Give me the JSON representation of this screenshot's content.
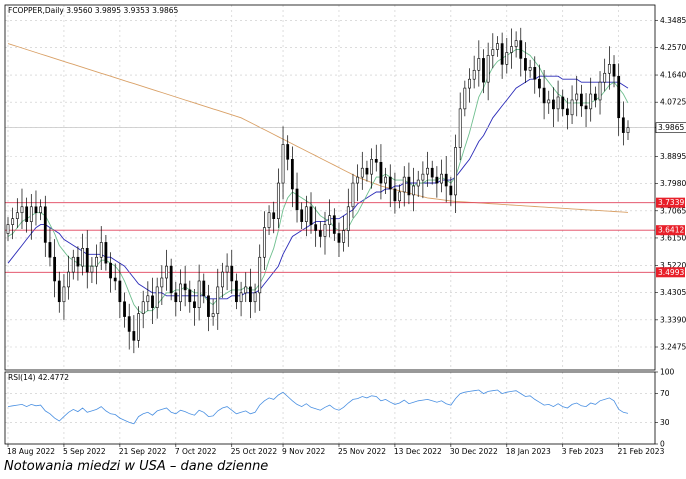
{
  "header": {
    "symbol_info": "FCOPPER,Daily  3.9560 3.9895 3.9353 3.9865",
    "rsi_label": "RSI(14) 42.4772"
  },
  "caption": "Notowania miedzi w USA – dane dzienne",
  "colors": {
    "candle_up": "#ffffff",
    "candle_down": "#000000",
    "ma_fast": "#6fbf8f",
    "ma_mid": "#2b2bb8",
    "ma_slow": "#d9a066",
    "level_line": "#e0405a",
    "level_badge": "#e8202a",
    "rsi_line": "#4a90e2",
    "grid": "#c8c8c8"
  },
  "chart_data": {
    "type": "candlestick",
    "ylim": [
      3.17,
      4.4
    ],
    "y_ticks": [
      "4.3485",
      "4.2570",
      "4.1640",
      "4.0725",
      "3.9865",
      "3.8895",
      "3.7980",
      "3.7065",
      "3.6150",
      "3.5220",
      "3.4305",
      "3.3390",
      "3.2475"
    ],
    "x_ticks": [
      {
        "label": "18 Aug 2022",
        "index": 0
      },
      {
        "label": "5 Sep 2022",
        "index": 12
      },
      {
        "label": "21 Sep 2022",
        "index": 24
      },
      {
        "label": "7 Oct 2022",
        "index": 36
      },
      {
        "label": "25 Oct 2022",
        "index": 48
      },
      {
        "label": "9 Nov 2022",
        "index": 59
      },
      {
        "label": "25 Nov 2022",
        "index": 71
      },
      {
        "label": "13 Dec 2022",
        "index": 83
      },
      {
        "label": "30 Dec 2022",
        "index": 95
      },
      {
        "label": "18 Jan 2023",
        "index": 107
      },
      {
        "label": "3 Feb 2023",
        "index": 119
      },
      {
        "label": "21 Feb 2023",
        "index": 131
      }
    ],
    "last_price": {
      "value": 3.9865,
      "label": "3.9865"
    },
    "levels": [
      {
        "value": 3.7339,
        "label": "3.7339"
      },
      {
        "value": 3.6412,
        "label": "3.6412"
      },
      {
        "value": 3.4993,
        "label": "3.4993"
      }
    ],
    "close": [
      3.66,
      3.68,
      3.7,
      3.72,
      3.67,
      3.72,
      3.7,
      3.72,
      3.6,
      3.55,
      3.47,
      3.4,
      3.45,
      3.5,
      3.55,
      3.52,
      3.58,
      3.5,
      3.52,
      3.55,
      3.6,
      3.53,
      3.48,
      3.47,
      3.4,
      3.35,
      3.3,
      3.27,
      3.36,
      3.4,
      3.42,
      3.38,
      3.45,
      3.48,
      3.52,
      3.43,
      3.4,
      3.46,
      3.44,
      3.4,
      3.38,
      3.47,
      3.42,
      3.35,
      3.36,
      3.45,
      3.5,
      3.52,
      3.47,
      3.4,
      3.43,
      3.45,
      3.4,
      3.43,
      3.55,
      3.65,
      3.7,
      3.68,
      3.8,
      3.93,
      3.88,
      3.78,
      3.71,
      3.67,
      3.72,
      3.66,
      3.64,
      3.62,
      3.66,
      3.69,
      3.63,
      3.6,
      3.64,
      3.72,
      3.8,
      3.82,
      3.85,
      3.83,
      3.88,
      3.87,
      3.8,
      3.82,
      3.78,
      3.74,
      3.77,
      3.82,
      3.76,
      3.79,
      3.81,
      3.83,
      3.85,
      3.82,
      3.8,
      3.83,
      3.79,
      3.76,
      3.92,
      4.05,
      4.12,
      4.15,
      4.18,
      4.22,
      4.14,
      4.23,
      4.25,
      4.27,
      4.2,
      4.24,
      4.26,
      4.28,
      4.22,
      4.18,
      4.19,
      4.15,
      4.12,
      4.07,
      4.08,
      4.05,
      4.09,
      4.05,
      4.03,
      4.08,
      4.1,
      4.06,
      4.05,
      4.1,
      4.08,
      4.14,
      4.17,
      4.2,
      4.16,
      4.02,
      3.97,
      3.9865
    ],
    "ma_fast": [
      3.62,
      3.63,
      3.65,
      3.67,
      3.68,
      3.69,
      3.7,
      3.7,
      3.69,
      3.66,
      3.63,
      3.59,
      3.57,
      3.55,
      3.54,
      3.53,
      3.52,
      3.52,
      3.52,
      3.52,
      3.54,
      3.54,
      3.53,
      3.52,
      3.5,
      3.47,
      3.43,
      3.39,
      3.37,
      3.36,
      3.37,
      3.37,
      3.39,
      3.41,
      3.43,
      3.43,
      3.44,
      3.44,
      3.45,
      3.44,
      3.43,
      3.43,
      3.42,
      3.4,
      3.39,
      3.41,
      3.42,
      3.43,
      3.44,
      3.44,
      3.44,
      3.45,
      3.44,
      3.44,
      3.46,
      3.49,
      3.54,
      3.58,
      3.64,
      3.71,
      3.75,
      3.77,
      3.76,
      3.75,
      3.74,
      3.73,
      3.71,
      3.69,
      3.68,
      3.67,
      3.65,
      3.64,
      3.64,
      3.65,
      3.68,
      3.7,
      3.73,
      3.76,
      3.79,
      3.82,
      3.82,
      3.83,
      3.82,
      3.81,
      3.81,
      3.81,
      3.8,
      3.79,
      3.8,
      3.8,
      3.81,
      3.81,
      3.81,
      3.82,
      3.81,
      3.8,
      3.82,
      3.87,
      3.92,
      3.97,
      4.03,
      4.09,
      4.12,
      4.16,
      4.19,
      4.21,
      4.22,
      4.23,
      4.24,
      4.25,
      4.25,
      4.24,
      4.23,
      4.21,
      4.19,
      4.16,
      4.14,
      4.12,
      4.1,
      4.09,
      4.07,
      4.07,
      4.07,
      4.07,
      4.07,
      4.07,
      4.08,
      4.09,
      4.11,
      4.13,
      4.14,
      4.12,
      4.1,
      4.07
    ],
    "ma_mid": [
      3.53,
      3.55,
      3.57,
      3.59,
      3.61,
      3.63,
      3.65,
      3.66,
      3.66,
      3.65,
      3.64,
      3.63,
      3.61,
      3.6,
      3.59,
      3.58,
      3.57,
      3.56,
      3.56,
      3.56,
      3.56,
      3.55,
      3.55,
      3.54,
      3.53,
      3.52,
      3.5,
      3.48,
      3.46,
      3.45,
      3.44,
      3.43,
      3.43,
      3.43,
      3.42,
      3.42,
      3.42,
      3.42,
      3.42,
      3.42,
      3.42,
      3.42,
      3.42,
      3.41,
      3.41,
      3.41,
      3.41,
      3.41,
      3.42,
      3.42,
      3.42,
      3.43,
      3.43,
      3.43,
      3.44,
      3.46,
      3.48,
      3.5,
      3.52,
      3.56,
      3.59,
      3.62,
      3.63,
      3.64,
      3.65,
      3.66,
      3.67,
      3.67,
      3.67,
      3.68,
      3.68,
      3.68,
      3.69,
      3.7,
      3.71,
      3.73,
      3.74,
      3.75,
      3.76,
      3.77,
      3.77,
      3.78,
      3.78,
      3.79,
      3.79,
      3.8,
      3.8,
      3.8,
      3.8,
      3.8,
      3.8,
      3.8,
      3.8,
      3.81,
      3.81,
      3.81,
      3.82,
      3.84,
      3.86,
      3.88,
      3.91,
      3.94,
      3.96,
      3.99,
      4.02,
      4.04,
      4.06,
      4.08,
      4.1,
      4.12,
      4.13,
      4.14,
      4.15,
      4.15,
      4.16,
      4.16,
      4.16,
      4.16,
      4.16,
      4.15,
      4.15,
      4.15,
      4.15,
      4.14,
      4.14,
      4.14,
      4.14,
      4.14,
      4.14,
      4.14,
      4.14,
      4.14,
      4.13,
      4.12
    ],
    "ma_slow": [
      4.27,
      4.265,
      4.26,
      4.255,
      4.25,
      4.245,
      4.24,
      4.235,
      4.23,
      4.225,
      4.22,
      4.215,
      4.21,
      4.205,
      4.2,
      4.195,
      4.19,
      4.185,
      4.18,
      4.175,
      4.17,
      4.165,
      4.16,
      4.155,
      4.15,
      4.145,
      4.14,
      4.135,
      4.13,
      4.125,
      4.12,
      4.115,
      4.11,
      4.105,
      4.1,
      4.095,
      4.09,
      4.085,
      4.08,
      4.075,
      4.07,
      4.065,
      4.06,
      4.055,
      4.05,
      4.045,
      4.04,
      4.035,
      4.03,
      4.025,
      4.02,
      4.012,
      4.004,
      3.996,
      3.988,
      3.98,
      3.972,
      3.964,
      3.956,
      3.948,
      3.94,
      3.932,
      3.924,
      3.916,
      3.908,
      3.9,
      3.892,
      3.884,
      3.876,
      3.868,
      3.86,
      3.852,
      3.844,
      3.836,
      3.828,
      3.82,
      3.814,
      3.808,
      3.802,
      3.796,
      3.79,
      3.786,
      3.782,
      3.778,
      3.774,
      3.77,
      3.766,
      3.762,
      3.758,
      3.754,
      3.75,
      3.748,
      3.746,
      3.744,
      3.742,
      3.74,
      3.738,
      3.737,
      3.736,
      3.735,
      3.734,
      3.733,
      3.732,
      3.731,
      3.73,
      3.729,
      3.728,
      3.727,
      3.726,
      3.725,
      3.724,
      3.723,
      3.722,
      3.721,
      3.72,
      3.719,
      3.718,
      3.717,
      3.716,
      3.715,
      3.714,
      3.713,
      3.712,
      3.711,
      3.71,
      3.709,
      3.708,
      3.707,
      3.706,
      3.705,
      3.704,
      3.703,
      3.702,
      3.701
    ],
    "rsi": {
      "ylim": [
        0,
        100
      ],
      "ticks": [
        "100",
        "70",
        "30",
        "0"
      ],
      "values": [
        52,
        53,
        54,
        55,
        52,
        55,
        53,
        54,
        46,
        42,
        36,
        32,
        38,
        44,
        48,
        45,
        50,
        44,
        46,
        48,
        52,
        46,
        42,
        41,
        36,
        33,
        30,
        28,
        38,
        42,
        44,
        40,
        46,
        48,
        50,
        44,
        42,
        47,
        45,
        42,
        40,
        47,
        44,
        38,
        39,
        46,
        50,
        52,
        47,
        42,
        44,
        46,
        42,
        44,
        54,
        60,
        64,
        62,
        68,
        72,
        66,
        60,
        55,
        52,
        56,
        51,
        49,
        47,
        51,
        54,
        49,
        47,
        51,
        57,
        62,
        63,
        66,
        64,
        67,
        66,
        60,
        62,
        58,
        55,
        57,
        61,
        56,
        58,
        60,
        61,
        62,
        60,
        58,
        60,
        56,
        54,
        63,
        70,
        72,
        73,
        74,
        75,
        70,
        73,
        74,
        75,
        70,
        72,
        73,
        74,
        70,
        66,
        67,
        62,
        58,
        54,
        55,
        52,
        56,
        52,
        50,
        55,
        57,
        53,
        52,
        57,
        55,
        60,
        62,
        64,
        60,
        48,
        44,
        42.4772
      ]
    }
  }
}
